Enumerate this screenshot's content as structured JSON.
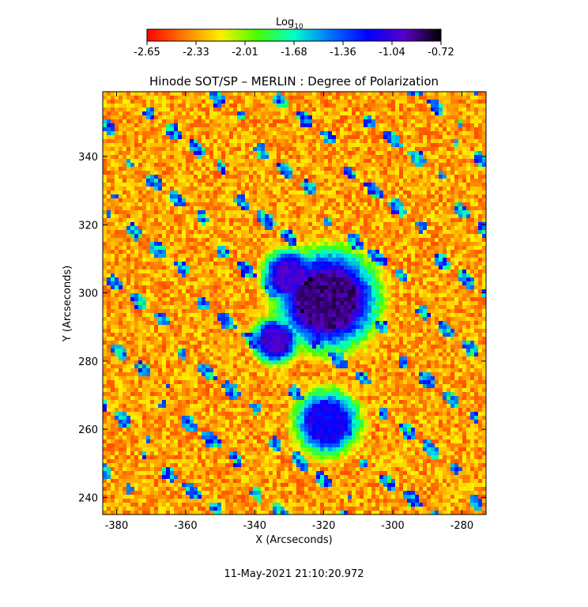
{
  "chart_data": {
    "type": "heatmap",
    "title": "Hinode SOT/SP – MERLIN : Degree of Polarization",
    "xlabel": "X (Arcseconds)",
    "ylabel": "Y (Arcseconds)",
    "xlim": [
      -384,
      -273
    ],
    "ylim": [
      235,
      359
    ],
    "xticks": [
      -380,
      -360,
      -340,
      -320,
      -300,
      -280
    ],
    "yticks": [
      240,
      260,
      280,
      300,
      320,
      340
    ],
    "colorbar": {
      "label_base": "Log",
      "label_sub": "10",
      "ticks": [
        "-2.65",
        "-2.33",
        "-2.01",
        "-1.68",
        "-1.36",
        "-1.04",
        "-0.72"
      ],
      "range": [
        -2.65,
        -0.72
      ],
      "colors": [
        "#ff0000",
        "#ff7a00",
        "#fff000",
        "#45ff00",
        "#00ffcc",
        "#0070ff",
        "#0000ff",
        "#5a00c8",
        "#000000"
      ]
    },
    "features": [
      {
        "name": "umbra-main",
        "x": -319,
        "y": 298,
        "r": 7.5,
        "value": -0.8
      },
      {
        "name": "umbra-upper-left",
        "x": -330,
        "y": 305,
        "r": 4,
        "value": -0.95
      },
      {
        "name": "umbra-lower-left",
        "x": -334,
        "y": 286,
        "r": 3.5,
        "value": -0.95
      },
      {
        "name": "pore-lower",
        "x": -319,
        "y": 262,
        "r": 5,
        "value": -1.1
      }
    ],
    "timestamp": "11-May-2021 21:10:20.972"
  }
}
